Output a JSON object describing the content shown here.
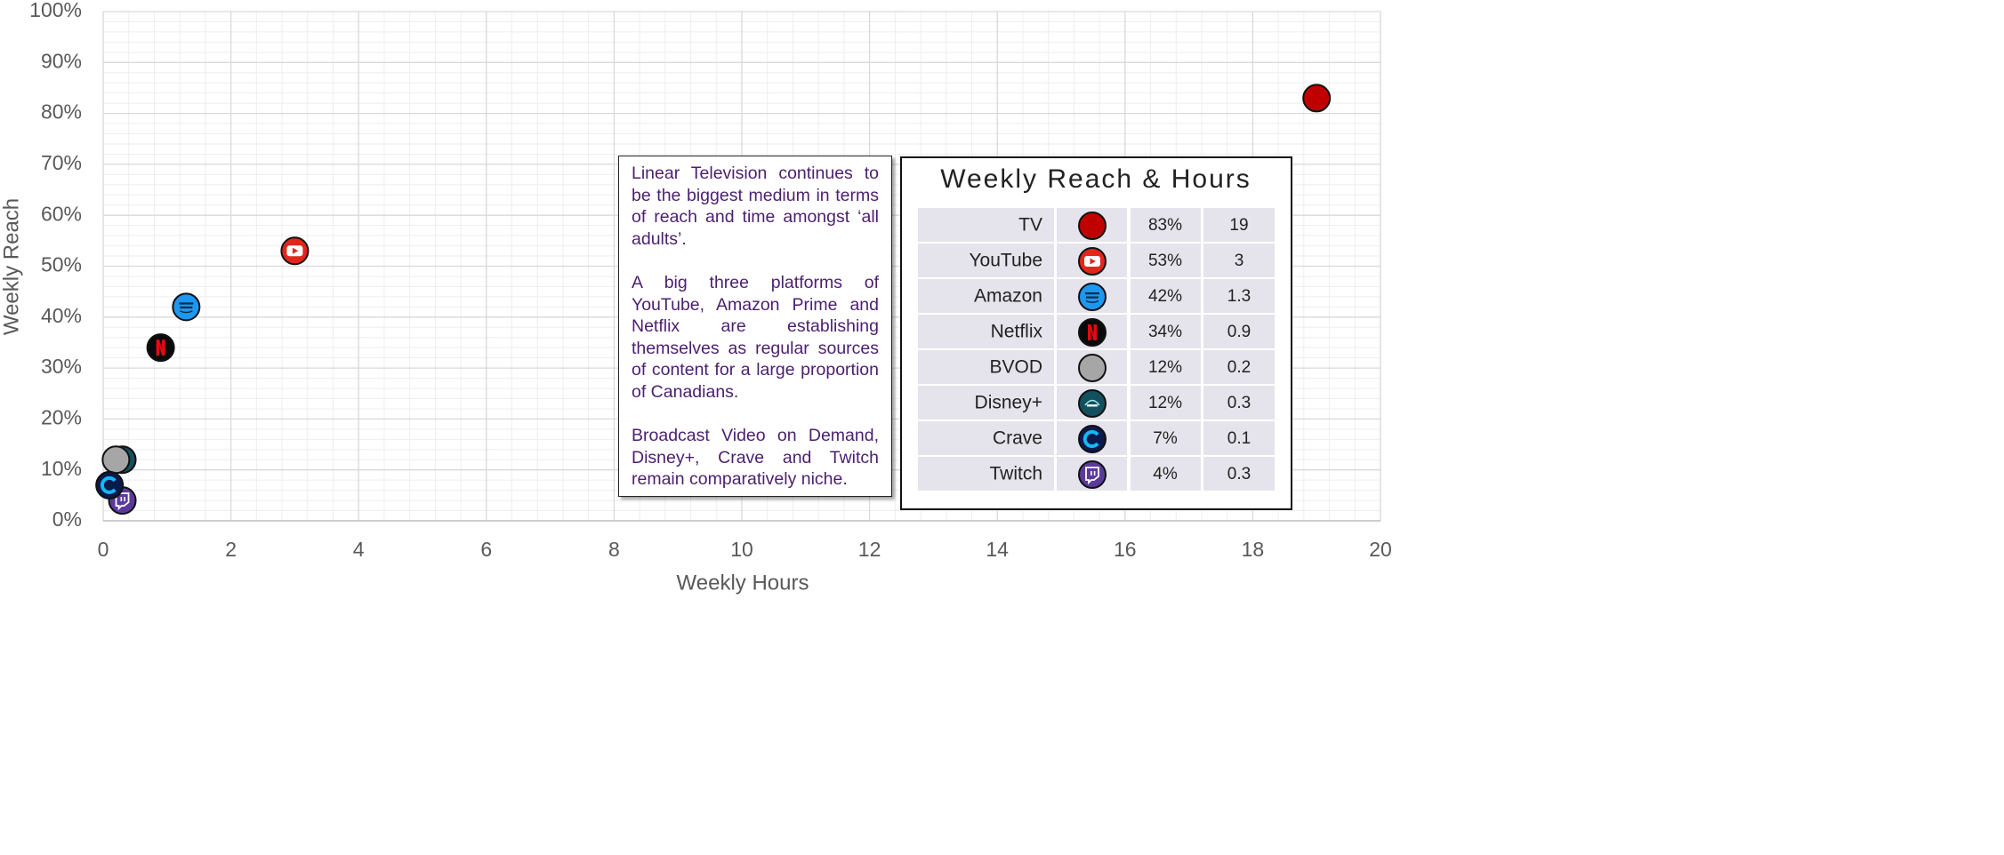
{
  "chart_data": {
    "type": "scatter",
    "xlabel": "Weekly Hours",
    "ylabel": "Weekly Reach",
    "xlim": [
      0,
      20
    ],
    "xticks": [
      0,
      2,
      4,
      6,
      8,
      10,
      12,
      14,
      16,
      18,
      20
    ],
    "ylim": [
      0,
      100
    ],
    "yticks": [
      {
        "value": 0,
        "label": "0%"
      },
      {
        "value": 10,
        "label": "10%"
      },
      {
        "value": 20,
        "label": "20%"
      },
      {
        "value": 30,
        "label": "30%"
      },
      {
        "value": 40,
        "label": "40%"
      },
      {
        "value": 50,
        "label": "50%"
      },
      {
        "value": 60,
        "label": "60%"
      },
      {
        "value": 70,
        "label": "70%"
      },
      {
        "value": 80,
        "label": "80%"
      },
      {
        "value": 90,
        "label": "90%"
      },
      {
        "value": 100,
        "label": "100%"
      }
    ],
    "grid": true,
    "series": [
      {
        "name": "TV",
        "color": "#c00000",
        "x": [
          19
        ],
        "values": [
          83
        ],
        "value_labels": [
          "83%"
        ]
      },
      {
        "name": "YouTube",
        "color": "#e3261c",
        "x": [
          3
        ],
        "values": [
          53
        ],
        "value_labels": [
          "53%"
        ]
      },
      {
        "name": "Amazon",
        "color": "#1d98f0",
        "x": [
          1.3
        ],
        "values": [
          42
        ],
        "value_labels": [
          "42%"
        ]
      },
      {
        "name": "Netflix",
        "color": "#0a0a0a",
        "x": [
          0.9
        ],
        "values": [
          34
        ],
        "value_labels": [
          "34%"
        ]
      },
      {
        "name": "BVOD",
        "color": "#a6a6a6",
        "x": [
          0.2
        ],
        "values": [
          12
        ],
        "value_labels": [
          "12%"
        ]
      },
      {
        "name": "Disney+",
        "color": "#13505e",
        "x": [
          0.3
        ],
        "values": [
          12
        ],
        "value_labels": [
          "12%"
        ]
      },
      {
        "name": "Crave",
        "color": "#0b1a4d",
        "x": [
          0.1
        ],
        "values": [
          7
        ],
        "value_labels": [
          "7%"
        ]
      },
      {
        "name": "Twitch",
        "color": "#5b3a9c",
        "x": [
          0.3
        ],
        "values": [
          4
        ],
        "value_labels": [
          "4%"
        ]
      }
    ],
    "table_title": "Weekly Reach & Hours",
    "annotations": [
      "Linear Television continues to be the biggest medium in terms of reach and time amongst ‘all adults’.",
      "A big three platforms of YouTube, Amazon Prime and Netflix are establishing themselves as regular sources of content for a large proportion of Canadians.",
      "Broadcast Video on Demand, Disney+, Crave and Twitch remain comparatively niche."
    ]
  }
}
